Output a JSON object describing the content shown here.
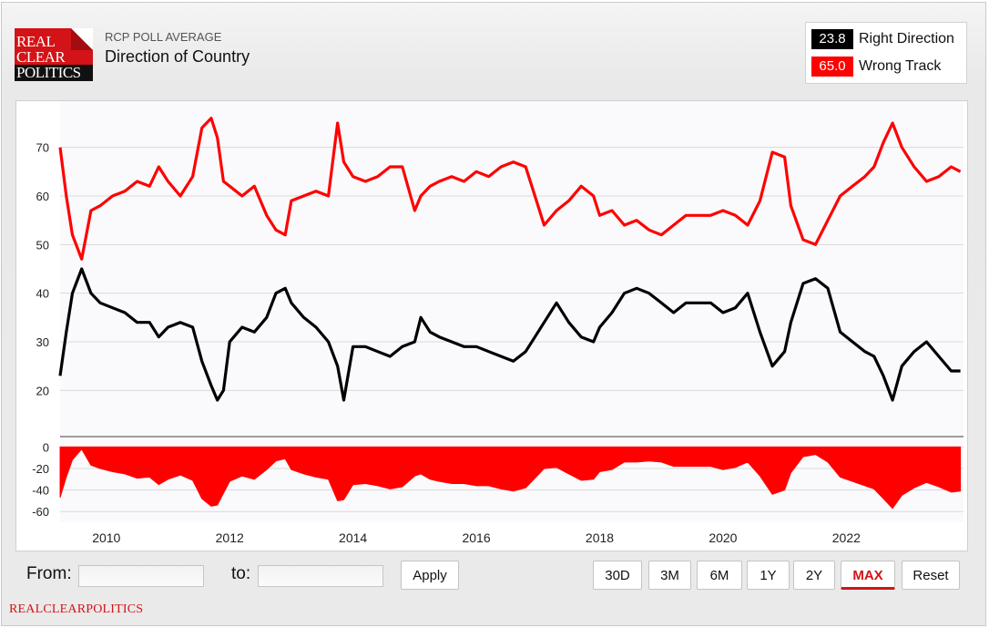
{
  "header": {
    "logo": [
      "REAL",
      "CLEAR",
      "POLITICS"
    ],
    "kicker": "RCP POLL AVERAGE",
    "title": "Direction of Country"
  },
  "legend": [
    {
      "value": "23.8",
      "name": "Right Direction",
      "color": "#000000"
    },
    {
      "value": "65.0",
      "name": "Wrong Track",
      "color": "#ff0000"
    }
  ],
  "chart_data": {
    "type": "line",
    "x_ticks": [
      "2010",
      "2012",
      "2014",
      "2016",
      "2018",
      "2020",
      "2022"
    ],
    "x_tick_years": [
      2010,
      2012,
      2014,
      2016,
      2018,
      2020,
      2022
    ],
    "xlim": [
      2009.25,
      2023.9
    ],
    "main_panel": {
      "ylim": [
        12,
        78
      ],
      "y_ticks": [
        "20",
        "30",
        "40",
        "50",
        "60",
        "70"
      ],
      "y_tick_values": [
        20,
        30,
        40,
        50,
        60,
        70
      ]
    },
    "spread_panel": {
      "ylim": [
        -70,
        2
      ],
      "y_ticks": [
        "0",
        "-20",
        "-40",
        "-60"
      ],
      "y_tick_values": [
        0,
        -20,
        -40,
        -60
      ]
    },
    "series": [
      {
        "name": "Wrong Track",
        "color": "#ff0000",
        "x": [
          2009.25,
          2009.35,
          2009.45,
          2009.6,
          2009.75,
          2009.9,
          2010.1,
          2010.3,
          2010.5,
          2010.7,
          2010.85,
          2011.0,
          2011.2,
          2011.4,
          2011.55,
          2011.7,
          2011.8,
          2011.9,
          2012.0,
          2012.2,
          2012.4,
          2012.6,
          2012.75,
          2012.9,
          2013.0,
          2013.2,
          2013.4,
          2013.6,
          2013.75,
          2013.85,
          2014.0,
          2014.2,
          2014.4,
          2014.6,
          2014.8,
          2015.0,
          2015.1,
          2015.25,
          2015.4,
          2015.6,
          2015.8,
          2016.0,
          2016.2,
          2016.4,
          2016.6,
          2016.8,
          2016.95,
          2017.1,
          2017.3,
          2017.5,
          2017.7,
          2017.9,
          2018.0,
          2018.2,
          2018.4,
          2018.6,
          2018.8,
          2019.0,
          2019.2,
          2019.4,
          2019.6,
          2019.8,
          2020.0,
          2020.2,
          2020.4,
          2020.6,
          2020.8,
          2021.0,
          2021.1,
          2021.3,
          2021.5,
          2021.7,
          2021.9,
          2022.1,
          2022.3,
          2022.45,
          2022.6,
          2022.75,
          2022.9,
          2023.1,
          2023.3,
          2023.5,
          2023.7,
          2023.85
        ],
        "values": [
          70,
          60,
          52,
          47,
          57,
          58,
          60,
          61,
          63,
          62,
          66,
          63,
          60,
          64,
          74,
          76,
          72,
          63,
          62,
          60,
          62,
          56,
          53,
          52,
          59,
          60,
          61,
          60,
          75,
          67,
          64,
          63,
          64,
          66,
          66,
          57,
          60,
          62,
          63,
          64,
          63,
          65,
          64,
          66,
          67,
          66,
          60,
          54,
          57,
          59,
          62,
          60,
          56,
          57,
          54,
          55,
          53,
          52,
          54,
          56,
          56,
          56,
          57,
          56,
          54,
          59,
          69,
          68,
          58,
          51,
          50,
          55,
          60,
          62,
          64,
          66,
          71,
          75,
          70,
          66,
          63,
          64,
          66,
          65
        ]
      },
      {
        "name": "Right Direction",
        "color": "#000000",
        "x": [
          2009.25,
          2009.35,
          2009.45,
          2009.6,
          2009.75,
          2009.9,
          2010.1,
          2010.3,
          2010.5,
          2010.7,
          2010.85,
          2011.0,
          2011.2,
          2011.4,
          2011.55,
          2011.7,
          2011.8,
          2011.9,
          2012.0,
          2012.2,
          2012.4,
          2012.6,
          2012.75,
          2012.9,
          2013.0,
          2013.2,
          2013.4,
          2013.6,
          2013.75,
          2013.85,
          2014.0,
          2014.2,
          2014.4,
          2014.6,
          2014.8,
          2015.0,
          2015.1,
          2015.25,
          2015.4,
          2015.6,
          2015.8,
          2016.0,
          2016.2,
          2016.4,
          2016.6,
          2016.8,
          2016.95,
          2017.1,
          2017.3,
          2017.5,
          2017.7,
          2017.9,
          2018.0,
          2018.2,
          2018.4,
          2018.6,
          2018.8,
          2019.0,
          2019.2,
          2019.4,
          2019.6,
          2019.8,
          2020.0,
          2020.2,
          2020.4,
          2020.6,
          2020.8,
          2021.0,
          2021.1,
          2021.3,
          2021.5,
          2021.7,
          2021.9,
          2022.1,
          2022.3,
          2022.45,
          2022.6,
          2022.75,
          2022.9,
          2023.1,
          2023.3,
          2023.5,
          2023.7,
          2023.85
        ],
        "values": [
          23,
          32,
          40,
          45,
          40,
          38,
          37,
          36,
          34,
          34,
          31,
          33,
          34,
          33,
          26,
          21,
          18,
          20,
          30,
          33,
          32,
          35,
          40,
          41,
          38,
          35,
          33,
          30,
          25,
          18,
          29,
          29,
          28,
          27,
          29,
          30,
          35,
          32,
          31,
          30,
          29,
          29,
          28,
          27,
          26,
          28,
          31,
          34,
          38,
          34,
          31,
          30,
          33,
          36,
          40,
          41,
          40,
          38,
          36,
          38,
          38,
          38,
          36,
          37,
          40,
          32,
          25,
          28,
          34,
          42,
          43,
          41,
          32,
          30,
          28,
          27,
          23,
          18,
          25,
          28,
          30,
          27,
          24,
          24
        ]
      }
    ]
  },
  "controls": {
    "from_label": "From:",
    "to_label": "to:",
    "from_value": "",
    "to_value": "",
    "apply": "Apply",
    "ranges": [
      "30D",
      "3M",
      "6M",
      "1Y",
      "2Y",
      "MAX"
    ],
    "active_range": "MAX",
    "reset": "Reset"
  },
  "footer": "REALCLEARPOLITICS"
}
